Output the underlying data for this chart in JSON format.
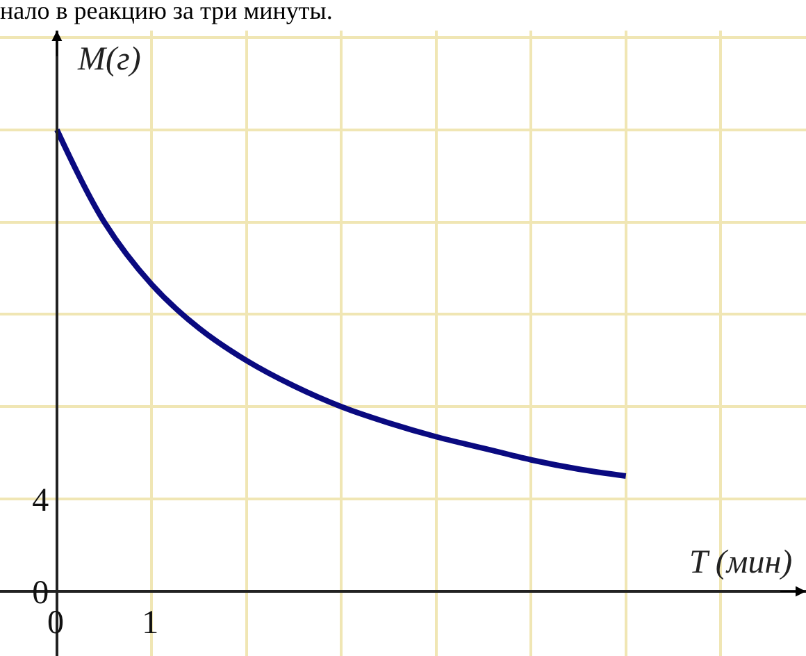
{
  "chart_data": {
    "type": "line",
    "title": "нало в реакцию за три минуты.",
    "xlabel": "T (мин)",
    "ylabel": "M(г)",
    "x": [
      0,
      0.5,
      1,
      1.5,
      2,
      2.5,
      3,
      3.5,
      4,
      4.5,
      5,
      5.5,
      6
    ],
    "series": [
      {
        "color": "#0a0a80",
        "values": [
          20,
          16,
          13.3,
          11.4,
          10,
          8.9,
          8,
          7.3,
          6.7,
          6.2,
          5.7,
          5.3,
          5
        ]
      }
    ],
    "xlim": [
      -0.6,
      7.9
    ],
    "ylim": [
      -2.8,
      24.3
    ],
    "xticks": [
      0,
      1,
      {
        "value": 2,
        "label": null
      },
      {
        "value": 3,
        "label": null
      },
      {
        "value": 4,
        "label": null
      },
      {
        "value": 5,
        "label": null
      },
      {
        "value": 6,
        "label": null
      },
      {
        "value": 7,
        "label": null
      }
    ],
    "yticks": [
      0,
      4,
      {
        "value": 8,
        "label": null
      },
      {
        "value": 12,
        "label": null
      },
      {
        "value": 16,
        "label": null
      },
      {
        "value": 20,
        "label": null
      },
      {
        "value": 24,
        "label": null
      }
    ],
    "grid": true,
    "legend": false,
    "marker": "none",
    "line_style": "solid"
  }
}
